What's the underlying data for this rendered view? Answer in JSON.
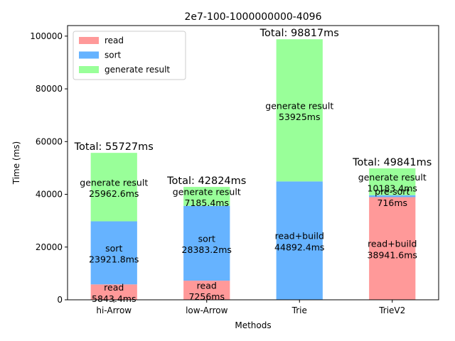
{
  "chart_data": {
    "type": "bar",
    "title": "2e7-100-1000000000-4096",
    "xlabel": "Methods",
    "ylabel": "Time (ms)",
    "ylim": [
      0,
      104000
    ],
    "yticks": [
      0,
      20000,
      40000,
      60000,
      80000,
      100000
    ],
    "grid": false,
    "legend_position": "top-left",
    "categories": [
      "hi-Arrow",
      "low-Arrow",
      "Trie",
      "TrieV2"
    ],
    "legend": [
      {
        "name": "read",
        "color": "#ff9999"
      },
      {
        "name": "sort",
        "color": "#66b3ff"
      },
      {
        "name": "generate result",
        "color": "#99ff99"
      }
    ],
    "stacks": [
      {
        "category": "hi-Arrow",
        "total_label": "Total: 55727ms",
        "segments": [
          {
            "value": 5843.4,
            "color": "#ff9999",
            "label": "read\n5843.4ms"
          },
          {
            "value": 23921.8,
            "color": "#66b3ff",
            "label": "sort\n23921.8ms"
          },
          {
            "value": 25962.6,
            "color": "#99ff99",
            "label": "generate result\n25962.6ms"
          }
        ]
      },
      {
        "category": "low-Arrow",
        "total_label": "Total: 42824ms",
        "segments": [
          {
            "value": 7256,
            "color": "#ff9999",
            "label": "read\n7256ms"
          },
          {
            "value": 28383.2,
            "color": "#66b3ff",
            "label": "sort\n28383.2ms"
          },
          {
            "value": 7185.4,
            "color": "#99ff99",
            "label": "generate result\n7185.4ms"
          }
        ]
      },
      {
        "category": "Trie",
        "total_label": "Total: 98817ms",
        "segments": [
          {
            "value": 44892.4,
            "color": "#66b3ff",
            "label": "read+build\n44892.4ms"
          },
          {
            "value": 53925,
            "color": "#99ff99",
            "label": "generate result\n53925ms"
          }
        ]
      },
      {
        "category": "TrieV2",
        "total_label": "Total: 49841ms",
        "segments": [
          {
            "value": 38941.6,
            "color": "#ff9999",
            "label": "read+build\n38941.6ms"
          },
          {
            "value": 716,
            "color": "#66b3ff",
            "label": "pre-sort\n716ms"
          },
          {
            "value": 10183.4,
            "color": "#99ff99",
            "label": "generate result\n10183.4ms"
          }
        ]
      }
    ]
  }
}
